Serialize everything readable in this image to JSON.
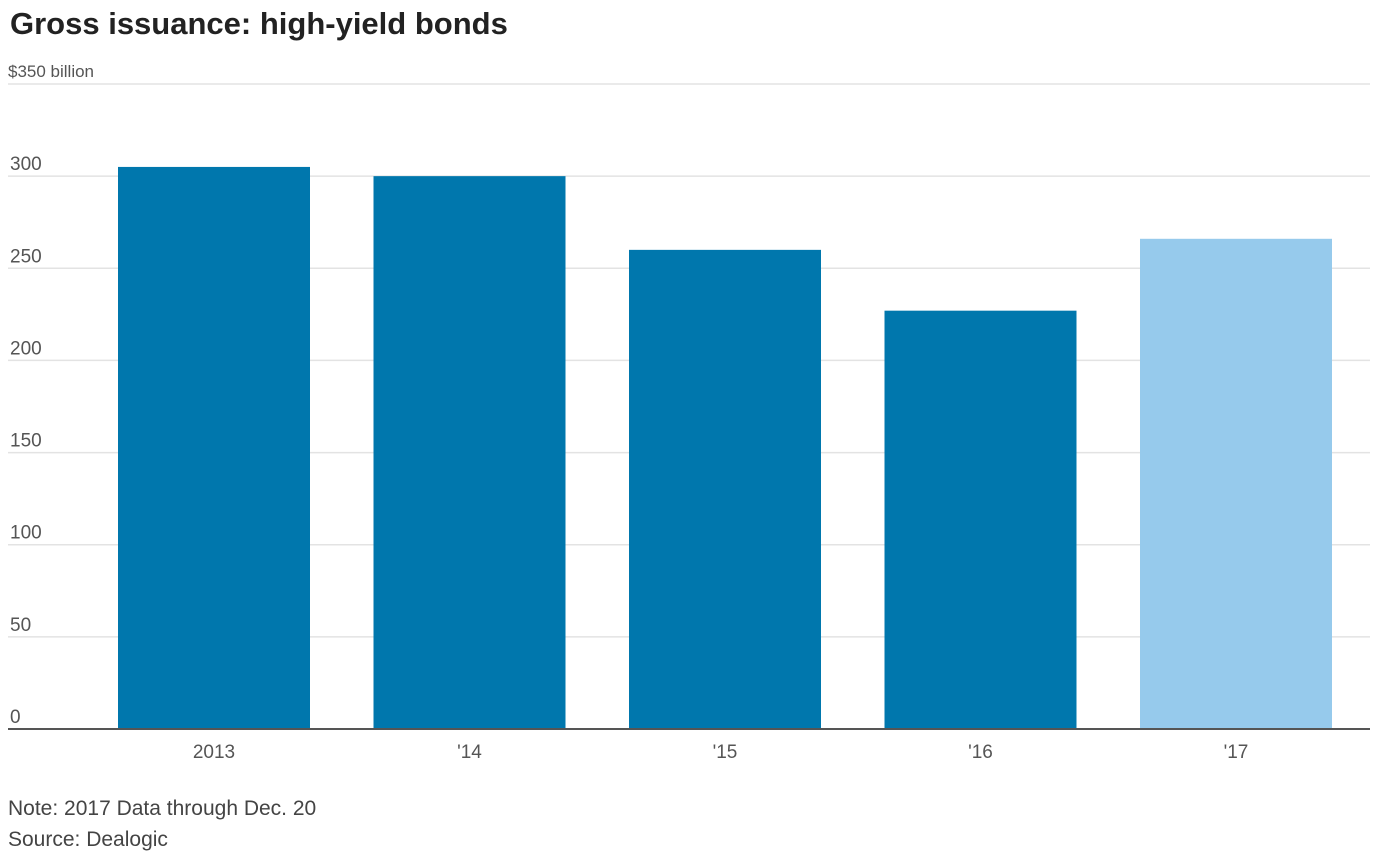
{
  "chart_data": {
    "type": "bar",
    "title": "Gross issuance: high-yield bonds",
    "unit_label": "$350 billion",
    "categories": [
      "2013",
      "'14",
      "'15",
      "'16",
      "'17"
    ],
    "values": [
      305,
      300,
      260,
      227,
      266
    ],
    "bar_colors": [
      "#0077ad",
      "#0077ad",
      "#0077ad",
      "#0077ad",
      "#96caec"
    ],
    "yticks": [
      0,
      50,
      100,
      150,
      200,
      250,
      300
    ],
    "ylim": [
      0,
      350
    ],
    "grid": true,
    "note": "Note: 2017 Data through Dec. 20",
    "source": "Source: Dealogic"
  },
  "colors": {
    "bar": "#0077ad",
    "bar_highlight": "#96caec",
    "gridline": "#e3e3e3",
    "axis": "#555555",
    "tick_text": "#555555"
  }
}
